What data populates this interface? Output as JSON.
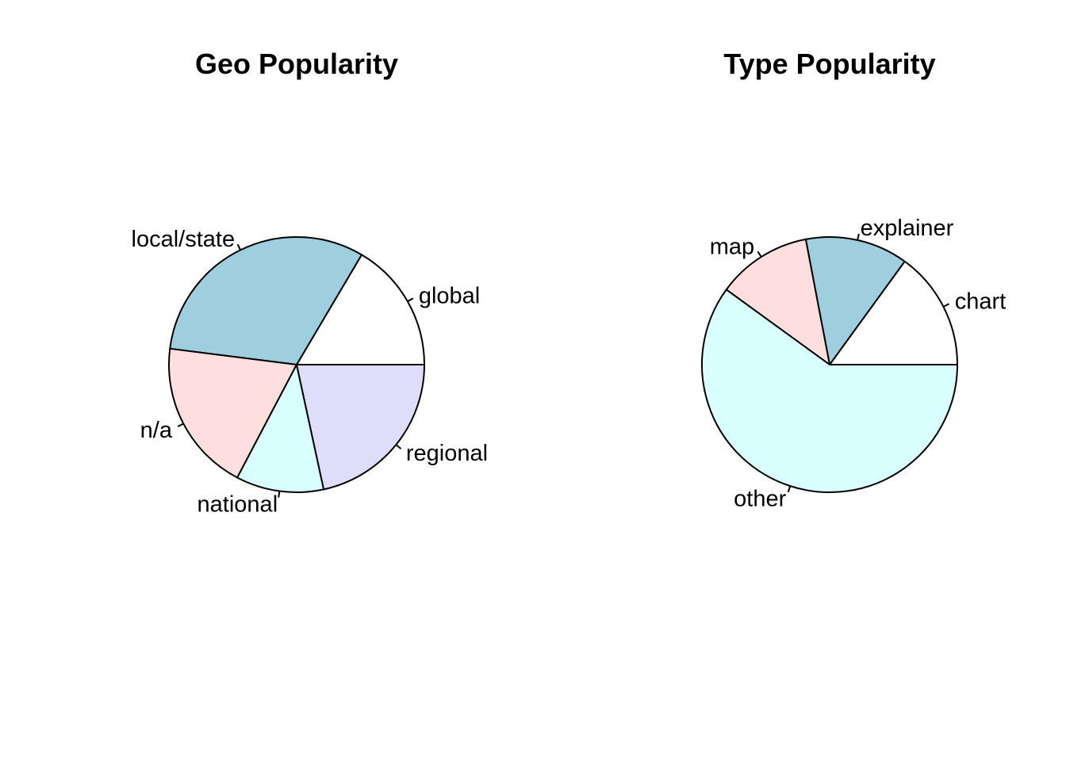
{
  "chart_data": [
    {
      "type": "pie",
      "title": "Geo Popularity",
      "slices": [
        {
          "label": "global",
          "value": 0.165,
          "color": "#FFFFFF"
        },
        {
          "label": "local/state",
          "value": 0.315,
          "color": "#9FCEDF"
        },
        {
          "label": "n/a",
          "value": 0.193,
          "color": "#FEDEDE"
        },
        {
          "label": "national",
          "value": 0.111,
          "color": "#D9FFFE"
        },
        {
          "label": "regional",
          "value": 0.216,
          "color": "#DEDEFA"
        }
      ]
    },
    {
      "type": "pie",
      "title": "Type Popularity",
      "slices": [
        {
          "label": "chart",
          "value": 0.15,
          "color": "#FFFFFF"
        },
        {
          "label": "explainer",
          "value": 0.13,
          "color": "#9FCEDF"
        },
        {
          "label": "map",
          "value": 0.12,
          "color": "#FEDEDE"
        },
        {
          "label": "other",
          "value": 0.6,
          "color": "#D9FFFE"
        }
      ]
    }
  ]
}
